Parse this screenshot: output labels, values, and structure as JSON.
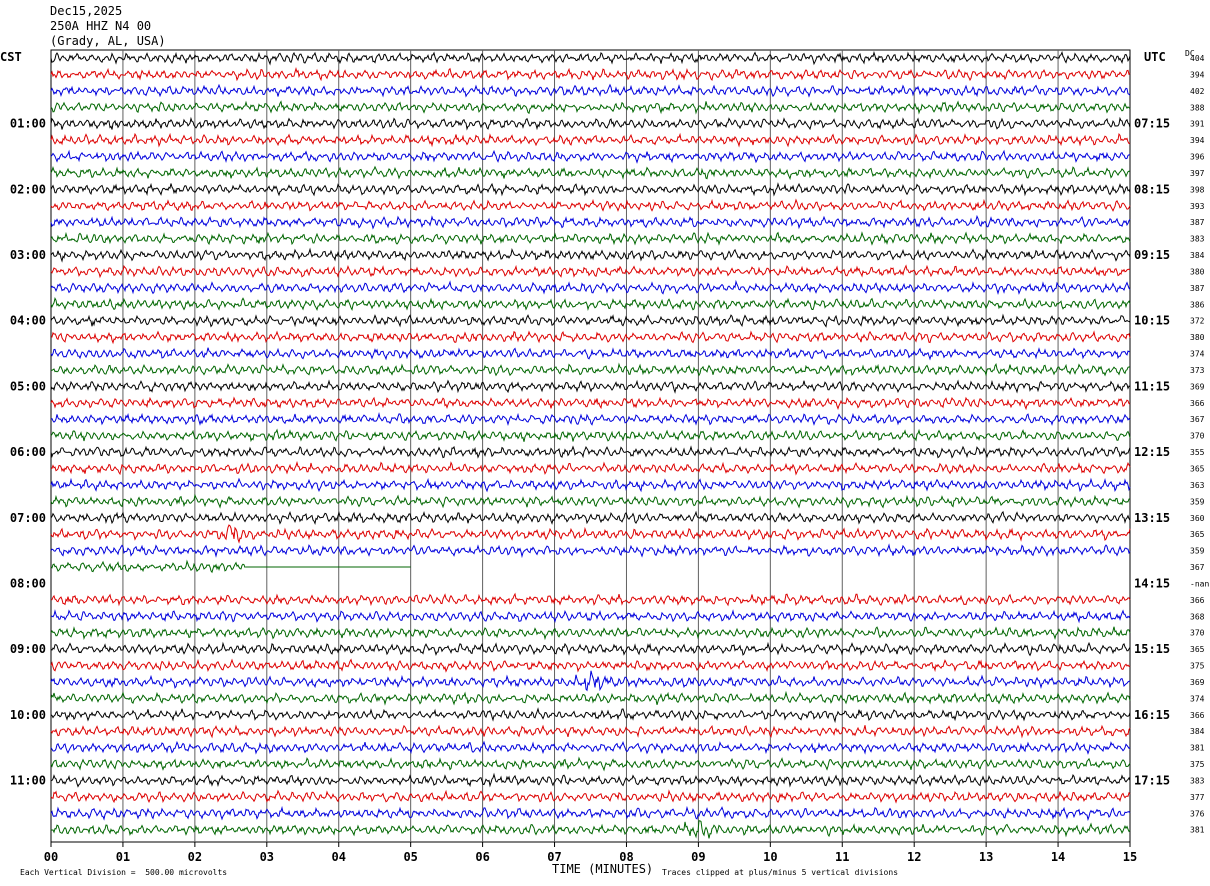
{
  "header": {
    "date": "Dec15,2025",
    "station": "250A HHZ N4 00",
    "location": "(Grady, AL, USA)"
  },
  "left_zone_label": "CST",
  "right_zone_label": "UTC",
  "dc_label": "DC",
  "colors": {
    "trace_cycle": [
      "#000000",
      "#dd0000",
      "#0000dd",
      "#006600"
    ],
    "grid": "#606060",
    "background": "#ffffff"
  },
  "chart_data": {
    "type": "line",
    "title": "",
    "xlabel": "TIME (MINUTES)",
    "ylabel": "",
    "xlim": [
      0,
      15
    ],
    "x_ticks": [
      "00",
      "01",
      "02",
      "03",
      "04",
      "05",
      "06",
      "07",
      "08",
      "09",
      "10",
      "11",
      "12",
      "13",
      "14",
      "15"
    ],
    "minutes_per_line": 15,
    "line_count": 48,
    "left_time_labels": [
      "01:00",
      "02:00",
      "03:00",
      "04:00",
      "05:00",
      "06:00",
      "07:00",
      "08:00",
      "09:00",
      "10:00",
      "11:00"
    ],
    "right_time_labels": [
      "07:15",
      "08:15",
      "09:15",
      "10:15",
      "11:15",
      "12:15",
      "13:15",
      "14:15",
      "15:15",
      "16:15",
      "17:15"
    ],
    "dc_offsets": [
      "404",
      "394",
      "402",
      "388",
      "391",
      "394",
      "396",
      "397",
      "398",
      "393",
      "387",
      "383",
      "384",
      "380",
      "387",
      "386",
      "372",
      "380",
      "374",
      "373",
      "369",
      "366",
      "367",
      "370",
      "355",
      "365",
      "363",
      "359",
      "360",
      "365",
      "359",
      "367",
      "-nan",
      "366",
      "368",
      "370",
      "365",
      "375",
      "369",
      "374",
      "366",
      "384",
      "381",
      "375",
      "383",
      "377",
      "376",
      "381"
    ],
    "data_gap": {
      "line_index": 31,
      "trace_ends_minute": 2.7,
      "flat_line_to_minute": 5.0,
      "missing_line_index": 32
    },
    "events": [
      {
        "line_index": 29,
        "minute": 2.5,
        "label": ""
      },
      {
        "line_index": 38,
        "minute": 7.5,
        "label": ""
      },
      {
        "line_index": 47,
        "minute": 9.0,
        "label": ""
      }
    ]
  },
  "footer": {
    "scale_note": "Each Vertical Division =  500.00 microvolts",
    "clip_note": "Traces clipped at plus/minus 5 vertical divisions"
  }
}
